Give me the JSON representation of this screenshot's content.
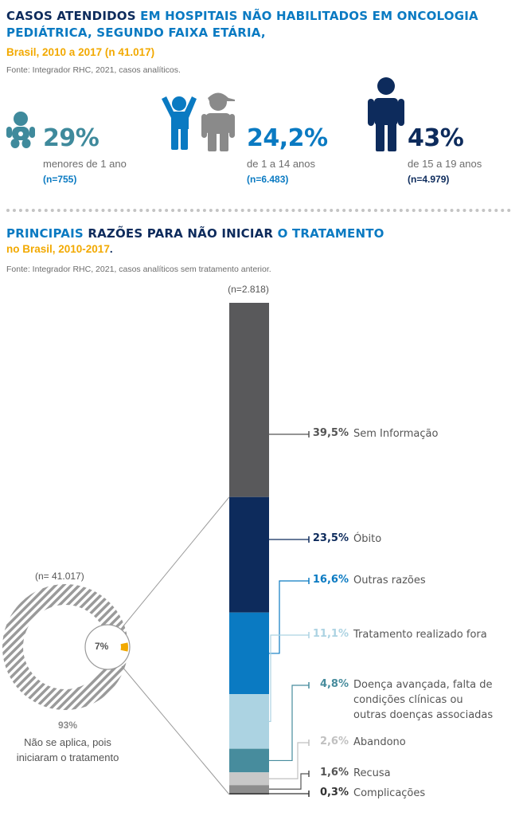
{
  "section1": {
    "title_a": "CASOS ATENDIDOS ",
    "title_b": "EM HOSPITAIS NÃO HABILITADOS EM ONCOLOGIA",
    "title_c": "PEDIÁTRICA, SEGUNDO FAIXA ETÁRIA,",
    "subtitle": "Brasil, 2010 a 2017 (n 41.017)",
    "source": "Fonte: Integrador RHC, 2021, casos analíticos.",
    "groups": [
      {
        "icon": "baby-icon",
        "pct": "29%",
        "label": "menores de 1 ano",
        "n": "(n=755)",
        "color": "#3f8a9c"
      },
      {
        "icon": "children-icon",
        "pct": "24,2%",
        "label": "de 1 a 14 anos",
        "n": "(n=6.483)",
        "color": "#0a7ac2"
      },
      {
        "icon": "teen-icon",
        "pct": "43%",
        "label": "de 15 a 19 anos",
        "n": "(n=4.979)",
        "color": "#0d2b5c"
      }
    ]
  },
  "section2": {
    "title_a": "PRINCIPAIS",
    "title_b": " RAZÕES PARA NÃO INICIAR ",
    "title_c": "O TRATAMENTO",
    "subtitle_a": "no Brasil, 2010-2017",
    "subtitle_b": ".",
    "source": "Fonte: Integrador RHC, 2021, casos analíticos sem tratamento anterior."
  },
  "chart_data": [
    {
      "type": "pie",
      "n_label": "(n= 41.017)",
      "slices": [
        {
          "label": "Não se aplica, pois iniciaram o tratamento",
          "pct_label": "93%",
          "value": 93,
          "color": "#9a9a9a"
        },
        {
          "label": "",
          "pct_label": "7%",
          "value": 7,
          "color": "#f2a900"
        }
      ],
      "bottom_pct": "93%",
      "bottom_label_1": "Não se aplica, pois",
      "bottom_label_2": "iniciaram o tratamento"
    },
    {
      "type": "bar",
      "stacked": true,
      "n_label": "(n=2.818)",
      "segments": [
        {
          "label": "Sem Informação",
          "value": 39.5,
          "pct_label": "39,5%",
          "color": "#59595b",
          "text_color": "#555555"
        },
        {
          "label": "Óbito",
          "value": 23.5,
          "pct_label": "23,5%",
          "color": "#0d2b5c",
          "text_color": "#0d2b5c"
        },
        {
          "label": "Outras razões",
          "value": 16.6,
          "pct_label": "16,6%",
          "color": "#0a7ac2",
          "text_color": "#0a7ac2"
        },
        {
          "label": "Tratamento realizado fora",
          "value": 11.1,
          "pct_label": "11,1%",
          "color": "#acd3e2",
          "text_color": "#acd3e2"
        },
        {
          "label": "Doença avançada, falta de",
          "label2": "condições clínicas ou",
          "label3": "outras doenças associadas",
          "value": 4.8,
          "pct_label": "4,8%",
          "color": "#478c9d",
          "text_color": "#478c9d"
        },
        {
          "label": "Abandono",
          "value": 2.6,
          "pct_label": "2,6%",
          "color": "#c8c8c8",
          "text_color": "#c0c0c0"
        },
        {
          "label": "Recusa",
          "value": 1.6,
          "pct_label": "1,6%",
          "color": "#8d8d8d",
          "text_color": "#555555"
        },
        {
          "label": "Complicações",
          "value": 0.3,
          "pct_label": "0,3%",
          "color": "#3a3a3a",
          "text_color": "#333333"
        }
      ]
    }
  ]
}
